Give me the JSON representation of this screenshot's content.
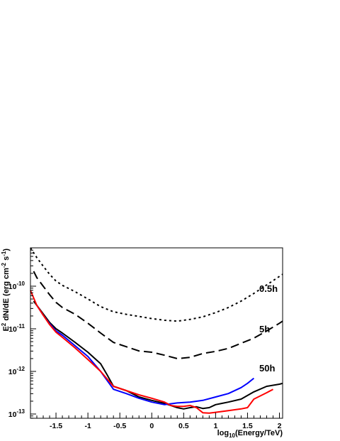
{
  "chart_data": {
    "type": "line",
    "title": "",
    "xlabel": "log10(Energy/TeV)",
    "ylabel": "E2 dN/dE (erg cm-2 s-1)",
    "xlim": [
      -1.9,
      2.05
    ],
    "ylim_log10": [
      -13.1,
      -9.1
    ],
    "y_scale": "log",
    "grid": false,
    "x_ticks": [
      "-1.5",
      "-1",
      "-0.5",
      "0",
      "0.5",
      "1",
      "1.5",
      "2"
    ],
    "y_tick_mantissa": "10",
    "y_ticks": [
      "-10",
      "-11",
      "-12",
      "-13"
    ],
    "annotations": [
      "0.5h",
      "5h",
      "50h"
    ],
    "series": [
      {
        "style": "dotted",
        "color": "#000000",
        "x": [
          -1.9,
          -1.8,
          -1.7,
          -1.6,
          -1.5,
          -1.4,
          -1.2,
          -1.0,
          -0.8,
          -0.6,
          -0.4,
          -0.2,
          0.0,
          0.2,
          0.4,
          0.6,
          0.8,
          1.0,
          1.2,
          1.4,
          1.6,
          1.8,
          2.0,
          2.05
        ],
        "y": [
          -9.1,
          -9.33,
          -9.53,
          -9.72,
          -9.88,
          -9.98,
          -10.13,
          -10.3,
          -10.48,
          -10.6,
          -10.66,
          -10.71,
          -10.76,
          -10.8,
          -10.82,
          -10.78,
          -10.72,
          -10.62,
          -10.5,
          -10.35,
          -10.17,
          -9.97,
          -9.77,
          -9.72
        ]
      },
      {
        "style": "dashed",
        "color": "#000000",
        "x": [
          -1.85,
          -1.8,
          -1.7,
          -1.6,
          -1.5,
          -1.4,
          -1.2,
          -1.0,
          -0.8,
          -0.6,
          -0.4,
          -0.2,
          0.0,
          0.2,
          0.4,
          0.6,
          0.8,
          1.0,
          1.2,
          1.4,
          1.6,
          1.8,
          2.0,
          2.05
        ],
        "y": [
          -9.65,
          -9.8,
          -10.0,
          -10.2,
          -10.38,
          -10.5,
          -10.66,
          -10.87,
          -11.1,
          -11.32,
          -11.42,
          -11.52,
          -11.55,
          -11.62,
          -11.7,
          -11.67,
          -11.58,
          -11.53,
          -11.46,
          -11.34,
          -11.22,
          -11.05,
          -10.87,
          -10.82
        ]
      },
      {
        "style": "solid",
        "color": "#000000",
        "x": [
          -1.85,
          -1.7,
          -1.6,
          -1.5,
          -1.4,
          -1.2,
          -1.0,
          -0.8,
          -0.7,
          -0.6,
          -0.4,
          -0.2,
          0.0,
          0.2,
          0.3,
          0.4,
          0.5,
          0.6,
          0.7,
          0.8,
          0.9,
          1.0,
          1.1,
          1.2,
          1.4,
          1.6,
          1.8,
          2.0,
          2.05
        ],
        "y": [
          -10.35,
          -10.65,
          -10.85,
          -11.0,
          -11.1,
          -11.32,
          -11.55,
          -11.82,
          -12.08,
          -12.35,
          -12.45,
          -12.6,
          -12.68,
          -12.75,
          -12.8,
          -12.85,
          -12.88,
          -12.85,
          -12.83,
          -12.87,
          -12.85,
          -12.78,
          -12.75,
          -12.72,
          -12.65,
          -12.48,
          -12.35,
          -12.3,
          -12.28
        ]
      },
      {
        "style": "solid",
        "color": "#0000ff",
        "x": [
          -1.8,
          -1.7,
          -1.6,
          -1.5,
          -1.4,
          -1.2,
          -1.0,
          -0.8,
          -0.6,
          -0.4,
          -0.2,
          0.0,
          0.2,
          0.4,
          0.6,
          0.8,
          1.0,
          1.2,
          1.4,
          1.5,
          1.6
        ],
        "y": [
          -10.45,
          -10.68,
          -10.88,
          -11.05,
          -11.15,
          -11.4,
          -11.65,
          -12.0,
          -12.42,
          -12.52,
          -12.63,
          -12.72,
          -12.78,
          -12.74,
          -12.72,
          -12.68,
          -12.6,
          -12.52,
          -12.38,
          -12.28,
          -12.16
        ]
      },
      {
        "style": "solid",
        "color": "#ff0000",
        "x": [
          -1.9,
          -1.8,
          -1.7,
          -1.6,
          -1.5,
          -1.4,
          -1.2,
          -1.0,
          -0.8,
          -0.6,
          -0.4,
          -0.2,
          0.0,
          0.2,
          0.3,
          0.4,
          0.5,
          0.6,
          0.7,
          0.8,
          0.9,
          1.0,
          1.2,
          1.3,
          1.4,
          1.5,
          1.6,
          1.8,
          1.9
        ],
        "y": [
          -10.1,
          -10.45,
          -10.68,
          -10.9,
          -11.08,
          -11.2,
          -11.45,
          -11.72,
          -12.0,
          -12.35,
          -12.45,
          -12.55,
          -12.63,
          -12.72,
          -12.8,
          -12.82,
          -12.82,
          -12.8,
          -12.85,
          -12.97,
          -12.98,
          -12.96,
          -12.92,
          -12.9,
          -12.88,
          -12.85,
          -12.65,
          -12.5,
          -12.42
        ]
      }
    ]
  }
}
